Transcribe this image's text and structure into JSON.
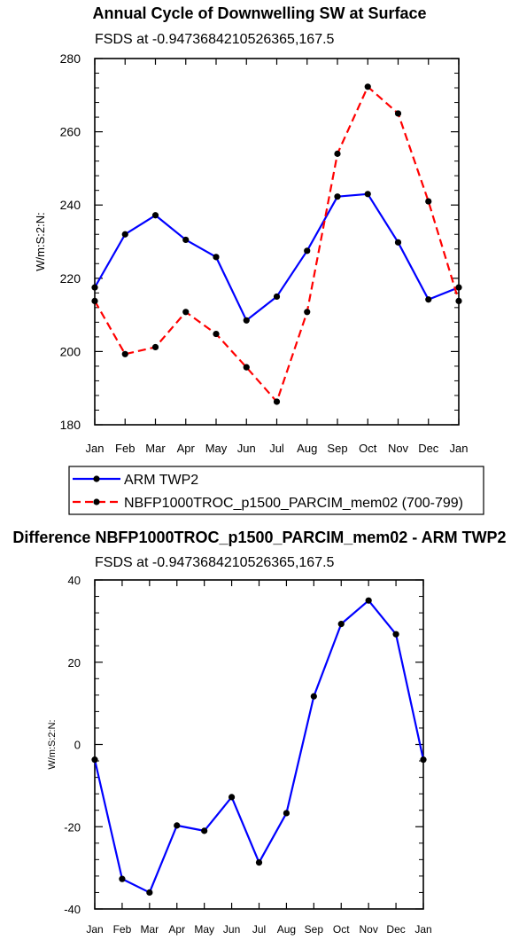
{
  "chart_data": [
    {
      "type": "line",
      "title": "Annual Cycle of Downwelling SW at Surface",
      "subtitle": "FSDS at -0.9473684210526365,167.5",
      "ylabel": "W/m:S:2:N:",
      "xlabel": "",
      "categories": [
        "Jan",
        "Feb",
        "Mar",
        "Apr",
        "May",
        "Jun",
        "Jul",
        "Aug",
        "Sep",
        "Oct",
        "Nov",
        "Dec",
        "Jan"
      ],
      "ylim": [
        180,
        280
      ],
      "yticks": [
        180,
        200,
        220,
        240,
        260,
        280
      ],
      "grid": false,
      "legend_position": "bottom",
      "series": [
        {
          "name": "ARM TWP2",
          "color": "#0000ff",
          "dash": "solid",
          "values": [
            217.5,
            232,
            237.2,
            230.5,
            225.8,
            208.5,
            215,
            227.5,
            242.3,
            243,
            229.8,
            214.2,
            217.5
          ]
        },
        {
          "name": "NBFP1000TROC_p1500_PARCIM_mem02 (700-799)",
          "color": "#ff0000",
          "dash": "dashed",
          "values": [
            213.8,
            199.3,
            201.2,
            210.8,
            204.8,
            195.7,
            186.3,
            210.8,
            254,
            272.3,
            265,
            241,
            213.8
          ]
        }
      ]
    },
    {
      "type": "line",
      "title": "Difference NBFP1000TROC_p1500_PARCIM_mem02 - ARM TWP2",
      "subtitle": "FSDS at -0.9473684210526365,167.5",
      "ylabel": "W/m:S:2:N:",
      "xlabel": "",
      "categories": [
        "Jan",
        "Feb",
        "Mar",
        "Apr",
        "May",
        "Jun",
        "Jul",
        "Aug",
        "Sep",
        "Oct",
        "Nov",
        "Dec",
        "Jan"
      ],
      "ylim": [
        -40,
        40
      ],
      "yticks": [
        -40,
        -20,
        0,
        20,
        40
      ],
      "grid": false,
      "series": [
        {
          "color": "#0000ff",
          "dash": "solid",
          "values": [
            -3.7,
            -32.7,
            -36,
            -19.7,
            -21,
            -12.8,
            -28.7,
            -16.7,
            11.7,
            29.3,
            35,
            26.8,
            -3.7
          ]
        }
      ]
    }
  ]
}
